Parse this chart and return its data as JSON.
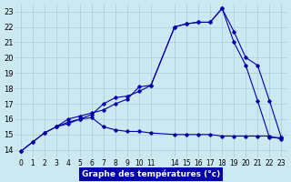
{
  "xlabel": "Graphe des températures (°c)",
  "background_color": "#cce8f0",
  "grid_color": "#aaccdd",
  "line_color": "#0000aa",
  "ylim": [
    13.5,
    23.5
  ],
  "yticks": [
    14,
    15,
    16,
    17,
    18,
    19,
    20,
    21,
    22,
    23
  ],
  "xtick_positions": [
    0,
    1,
    2,
    3,
    4,
    5,
    6,
    7,
    8,
    9,
    10,
    11,
    13,
    14,
    15,
    16,
    17,
    18,
    19,
    20,
    21,
    22
  ],
  "xtick_labels": [
    "0",
    "1",
    "2",
    "3",
    "4",
    "5",
    "6",
    "7",
    "8",
    "9",
    "10",
    "11",
    "14",
    "15",
    "16",
    "17",
    "18",
    "19",
    "20",
    "21",
    "22",
    "23"
  ],
  "xlim": [
    -0.5,
    22.5
  ],
  "line1_x": [
    0,
    1,
    2,
    3,
    4,
    5,
    6,
    7,
    8,
    9,
    10,
    11,
    13,
    14,
    15,
    16,
    17,
    18,
    19,
    20,
    21,
    22
  ],
  "line1_y": [
    13.9,
    14.5,
    15.1,
    15.5,
    15.8,
    16.0,
    16.1,
    15.5,
    15.3,
    15.2,
    15.2,
    15.1,
    15.0,
    15.0,
    15.0,
    15.0,
    14.9,
    14.9,
    14.9,
    14.9,
    14.9,
    14.7
  ],
  "line2_x": [
    0,
    1,
    2,
    3,
    4,
    5,
    6,
    7,
    8,
    9,
    10,
    11,
    13,
    14,
    15,
    16,
    17,
    18,
    19,
    20,
    21,
    22
  ],
  "line2_y": [
    13.9,
    14.5,
    15.1,
    15.5,
    16.0,
    16.2,
    16.4,
    16.6,
    17.0,
    17.3,
    18.1,
    18.2,
    22.0,
    22.2,
    22.3,
    22.3,
    23.2,
    21.7,
    20.0,
    19.5,
    17.2,
    14.8
  ],
  "line3_x": [
    3,
    4,
    5,
    6,
    7,
    8,
    9,
    10,
    11,
    13,
    14,
    15,
    16,
    17,
    18,
    19,
    20,
    21,
    22
  ],
  "line3_y": [
    15.5,
    15.7,
    16.0,
    16.3,
    17.0,
    17.4,
    17.5,
    17.8,
    18.2,
    22.0,
    22.2,
    22.3,
    22.3,
    23.2,
    21.0,
    19.5,
    17.2,
    14.8,
    14.8
  ],
  "xlabel_bg": "#0000aa",
  "xlabel_fg": "#ffffff",
  "xlabel_fontsize": 6.5,
  "tick_fontsize": 5.5,
  "ytick_fontsize": 6
}
